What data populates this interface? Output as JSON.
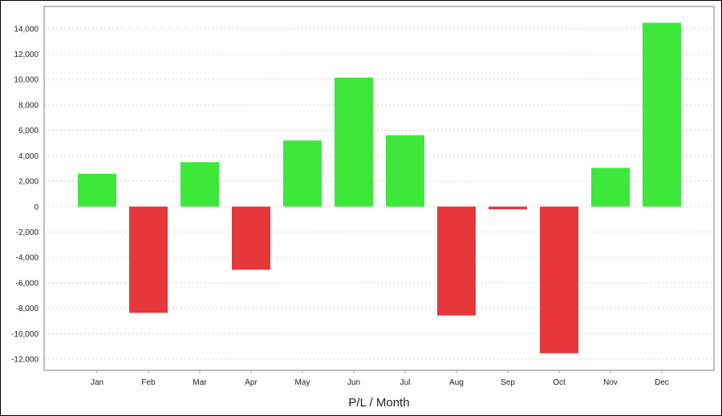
{
  "chart_data": {
    "type": "bar",
    "title": "",
    "xlabel": "P/L / Month",
    "ylabel": "",
    "categories": [
      "Jan",
      "Feb",
      "Mar",
      "Apr",
      "May",
      "Jun",
      "Jul",
      "Aug",
      "Sep",
      "Oct",
      "Nov",
      "Dec"
    ],
    "values": [
      2590,
      -8360,
      3500,
      -4970,
      5200,
      10150,
      5620,
      -8570,
      -210,
      -11540,
      3050,
      14460
    ],
    "ylim": [
      -12880,
      15750
    ],
    "yticks": [
      -12000,
      -10000,
      -8000,
      -6000,
      -4000,
      -2000,
      0,
      2000,
      4000,
      6000,
      8000,
      10000,
      12000,
      14000
    ],
    "ytick_labels": [
      "-12,000",
      "-10,000",
      "-8,000",
      "-6,000",
      "-4,000",
      "-2,000",
      "0",
      "2,000",
      "4,000",
      "6,000",
      "8,000",
      "10,000",
      "12,000",
      "14,000"
    ],
    "grid": true,
    "legend": "none",
    "colors": {
      "positive": "#3de83a",
      "negative": "#e6373b",
      "grid": "#d0d0d0",
      "axis": "#a8a8a8"
    }
  }
}
